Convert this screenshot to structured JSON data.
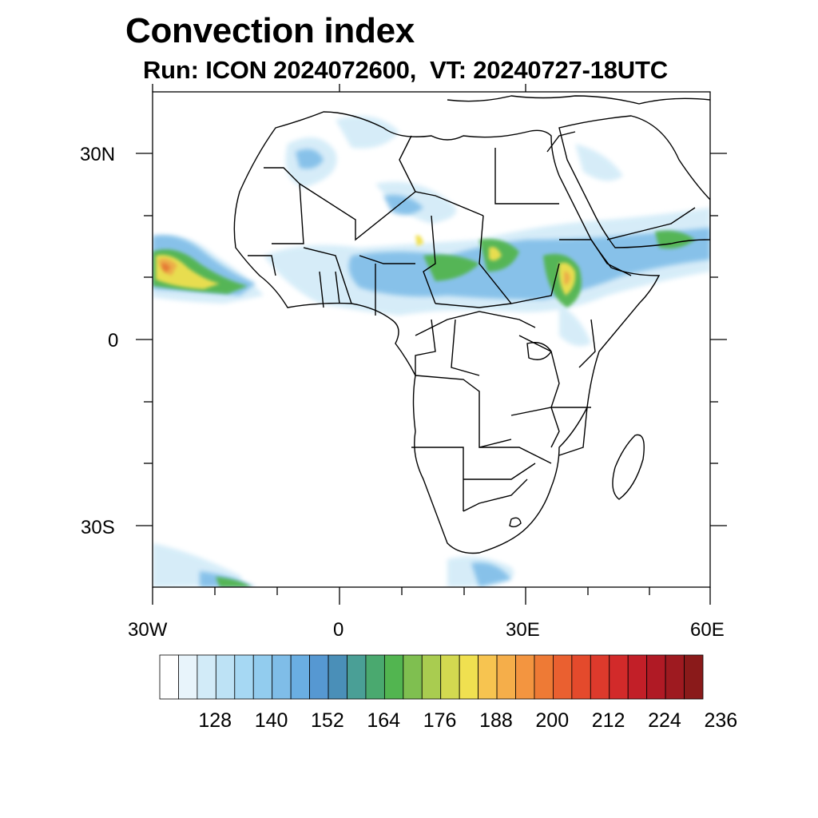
{
  "title": "Convection index",
  "subtitle": "Run: ICON 2024072600,  VT: 20240727-18UTC",
  "map": {
    "lon_range": [
      -30,
      60
    ],
    "lat_range": [
      -40,
      40
    ],
    "lon_labels": [
      "30W",
      "0",
      "30E",
      "60E"
    ],
    "lat_labels": [
      "30N",
      "0",
      "30S"
    ]
  },
  "colorbar": {
    "colors": [
      "#ffffff",
      "#e8f4fb",
      "#d2ebf8",
      "#bde2f5",
      "#a6d8f3",
      "#92ccee",
      "#7fbde8",
      "#6aaee2",
      "#5698d2",
      "#4a8fb8",
      "#4a9f96",
      "#4aa96f",
      "#52b550",
      "#7fbf50",
      "#a9cc50",
      "#d3d950",
      "#f0e050",
      "#f7c450",
      "#f5ae4a",
      "#f39540",
      "#ee7a35",
      "#ea6030",
      "#e44a2c",
      "#dd3a2c",
      "#d22a2a",
      "#c21f28",
      "#b01a25",
      "#9e1a20",
      "#8a1a1a"
    ],
    "labels": [
      "128",
      "140",
      "152",
      "164",
      "176",
      "188",
      "200",
      "212",
      "224",
      "236"
    ]
  }
}
